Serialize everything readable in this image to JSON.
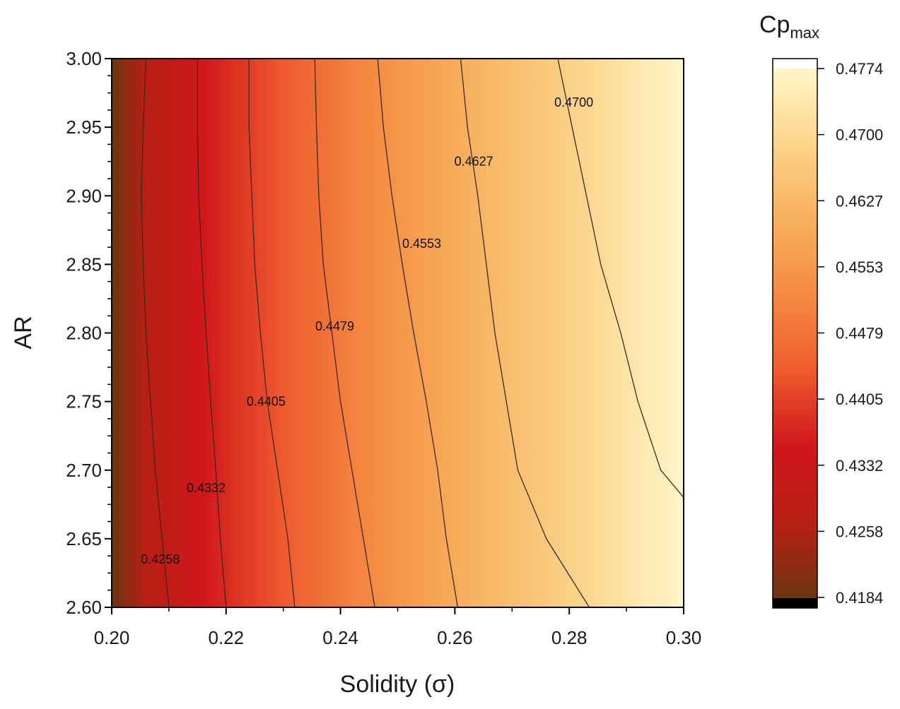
{
  "chart_data": {
    "type": "heatmap",
    "xlabel": "Solidity (σ)",
    "ylabel": "AR",
    "xlim": [
      0.2,
      0.3
    ],
    "ylim": [
      2.6,
      3.0
    ],
    "x_ticks": [
      "0.20",
      "0.22",
      "0.24",
      "0.26",
      "0.28",
      "0.30"
    ],
    "y_ticks": [
      "2.60",
      "2.65",
      "2.70",
      "2.75",
      "2.80",
      "2.85",
      "2.90",
      "2.95",
      "3.00"
    ],
    "colorbar": {
      "title_main": "Cp",
      "title_sub": "max",
      "min": 0.4184,
      "max": 0.4774,
      "ticks": [
        "0.4774",
        "0.4700",
        "0.4627",
        "0.4553",
        "0.4479",
        "0.4405",
        "0.4332",
        "0.4258",
        "0.4184"
      ],
      "colors": [
        "#6b3610",
        "#b91f14",
        "#d0171b",
        "#ee5a2e",
        "#f48a40",
        "#f7b05c",
        "#fbd48b",
        "#fff6c8"
      ]
    },
    "contours": [
      {
        "level": 0.4258,
        "label": "0.4258",
        "points": [
          [
            0.206,
            3.0
          ],
          [
            0.2055,
            2.95
          ],
          [
            0.2052,
            2.9
          ],
          [
            0.2055,
            2.85
          ],
          [
            0.206,
            2.8
          ],
          [
            0.2068,
            2.75
          ],
          [
            0.2076,
            2.7
          ],
          [
            0.2088,
            2.65
          ],
          [
            0.21,
            2.6
          ]
        ]
      },
      {
        "level": 0.4332,
        "label": "0.4332",
        "points": [
          [
            0.215,
            3.0
          ],
          [
            0.215,
            2.95
          ],
          [
            0.2152,
            2.9
          ],
          [
            0.2158,
            2.85
          ],
          [
            0.2165,
            2.8
          ],
          [
            0.2173,
            2.75
          ],
          [
            0.2182,
            2.7
          ],
          [
            0.219,
            2.65
          ],
          [
            0.22,
            2.6
          ]
        ]
      },
      {
        "level": 0.4405,
        "label": "0.4405",
        "points": [
          [
            0.224,
            3.0
          ],
          [
            0.224,
            2.95
          ],
          [
            0.2245,
            2.9
          ],
          [
            0.225,
            2.85
          ],
          [
            0.226,
            2.8
          ],
          [
            0.2272,
            2.75
          ],
          [
            0.229,
            2.7
          ],
          [
            0.2308,
            2.65
          ],
          [
            0.232,
            2.6
          ]
        ]
      },
      {
        "level": 0.4479,
        "label": "0.4479",
        "points": [
          [
            0.2355,
            3.0
          ],
          [
            0.2358,
            2.95
          ],
          [
            0.2362,
            2.9
          ],
          [
            0.237,
            2.85
          ],
          [
            0.2385,
            2.8
          ],
          [
            0.24,
            2.75
          ],
          [
            0.242,
            2.7
          ],
          [
            0.244,
            2.65
          ],
          [
            0.246,
            2.6
          ]
        ]
      },
      {
        "level": 0.4553,
        "label": "0.4553",
        "points": [
          [
            0.2465,
            3.0
          ],
          [
            0.2475,
            2.95
          ],
          [
            0.249,
            2.9
          ],
          [
            0.2508,
            2.85
          ],
          [
            0.2528,
            2.8
          ],
          [
            0.255,
            2.75
          ],
          [
            0.257,
            2.7
          ],
          [
            0.2585,
            2.65
          ],
          [
            0.2605,
            2.6
          ]
        ]
      },
      {
        "level": 0.4627,
        "label": "0.4627",
        "points": [
          [
            0.261,
            3.0
          ],
          [
            0.2622,
            2.95
          ],
          [
            0.264,
            2.9
          ],
          [
            0.2655,
            2.85
          ],
          [
            0.267,
            2.8
          ],
          [
            0.269,
            2.75
          ],
          [
            0.271,
            2.7
          ],
          [
            0.276,
            2.65
          ],
          [
            0.2835,
            2.6
          ]
        ]
      },
      {
        "level": 0.47,
        "label": "0.4700",
        "points": [
          [
            0.278,
            3.0
          ],
          [
            0.2805,
            2.95
          ],
          [
            0.283,
            2.9
          ],
          [
            0.2855,
            2.85
          ],
          [
            0.289,
            2.8
          ],
          [
            0.292,
            2.75
          ],
          [
            0.296,
            2.7
          ],
          [
            0.3,
            2.68
          ]
        ]
      }
    ],
    "contour_labels": [
      {
        "text": "0.4258",
        "x": 0.2085,
        "y": 2.635
      },
      {
        "text": "0.4332",
        "x": 0.2165,
        "y": 2.687
      },
      {
        "text": "0.4405",
        "x": 0.227,
        "y": 2.75
      },
      {
        "text": "0.4479",
        "x": 0.239,
        "y": 2.805
      },
      {
        "text": "0.4553",
        "x": 0.2542,
        "y": 2.865
      },
      {
        "text": "0.4627",
        "x": 0.2633,
        "y": 2.925
      },
      {
        "text": "0.4700",
        "x": 0.2808,
        "y": 2.968
      }
    ]
  }
}
